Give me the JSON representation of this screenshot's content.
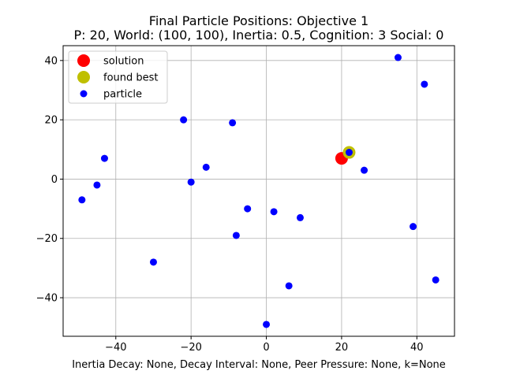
{
  "chart_data": {
    "type": "scatter",
    "title_line1": "Final Particle Positions: Objective 1",
    "title_line2": "P: 20, World: (100, 100), Inertia: 0.5, Cognition: 3 Social: 0",
    "xlabel": "Inertia Decay: None, Decay Interval: None, Peer Pressure: None, k=None",
    "ylabel": "",
    "xlim": [
      -54,
      50
    ],
    "ylim": [
      -53,
      45
    ],
    "xticks": [
      -40,
      -20,
      0,
      20,
      40
    ],
    "yticks": [
      -40,
      -20,
      0,
      20,
      40
    ],
    "grid": true,
    "legend_position": "top-left",
    "series": [
      {
        "name": "solution",
        "color": "#ff0000",
        "marker_size": "large",
        "points": [
          [
            20,
            7
          ]
        ]
      },
      {
        "name": "found best",
        "color": "#bfbf00",
        "marker_size": "large",
        "points": [
          [
            22,
            9
          ]
        ]
      },
      {
        "name": "particle",
        "color": "#0000ff",
        "marker_size": "small",
        "points": [
          [
            35,
            41
          ],
          [
            42,
            32
          ],
          [
            -22,
            20
          ],
          [
            -9,
            19
          ],
          [
            22,
            9
          ],
          [
            -43,
            7
          ],
          [
            -16,
            4
          ],
          [
            26,
            3
          ],
          [
            -20,
            -1
          ],
          [
            -45,
            -2
          ],
          [
            -49,
            -7
          ],
          [
            -5,
            -10
          ],
          [
            2,
            -11
          ],
          [
            9,
            -13
          ],
          [
            39,
            -16
          ],
          [
            -8,
            -19
          ],
          [
            -30,
            -28
          ],
          [
            6,
            -36
          ],
          [
            45,
            -34
          ],
          [
            0,
            -49
          ]
        ]
      }
    ]
  }
}
